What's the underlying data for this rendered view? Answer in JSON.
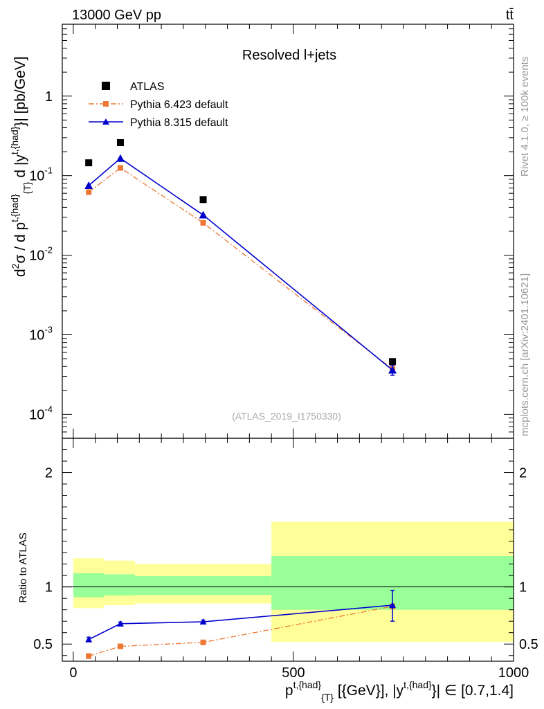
{
  "header": {
    "energy": "13000 GeV pp",
    "process": "tt̄"
  },
  "side_labels": {
    "rivet": "Rivet 4.1.0, ≥ 100k events",
    "source": "mcplots.cern.ch [arXiv:2401.10621]"
  },
  "analysis_id": "(ATLAS_2019_I1750330)",
  "colors": {
    "atlas": "#000000",
    "py6": "#ee7733",
    "py8": "#0000cc",
    "band_inner": "#99ff99",
    "band_outer": "#ffff99"
  },
  "chart_data": [
    {
      "type": "scatter",
      "title": "Resolved l+jets",
      "ylabel": "d²σ / d p^{t,{had}}_{T} d |y^{t,{had}}| [pb/GeV]",
      "yscale": "log",
      "ylim": [
        5e-05,
        8
      ],
      "xlim": [
        -25,
        1000
      ],
      "y_ticks": [
        {
          "value": 0.0001,
          "base": "10",
          "exp": "-4"
        },
        {
          "value": 0.001,
          "base": "10",
          "exp": "-3"
        },
        {
          "value": 0.01,
          "base": "10",
          "exp": "-2"
        },
        {
          "value": 0.1,
          "base": "10",
          "exp": "-1"
        },
        {
          "value": 1,
          "base": "1",
          "exp": ""
        }
      ],
      "legend": [
        {
          "label": "ATLAS",
          "key": "atlas"
        },
        {
          "label": "Pythia 6.423 default",
          "key": "py6"
        },
        {
          "label": "Pythia 8.315 default",
          "key": "py8"
        }
      ],
      "series": [
        {
          "name": "ATLAS",
          "key": "atlas",
          "marker": "square",
          "x": [
            35,
            107,
            295,
            725
          ],
          "y": [
            0.145,
            0.26,
            0.05,
            0.00046
          ]
        },
        {
          "name": "Pythia 6.423 default",
          "key": "py6",
          "marker": "square",
          "line": "dashdot",
          "x": [
            35,
            107,
            295,
            725
          ],
          "y": [
            0.062,
            0.125,
            0.0255,
            0.00037
          ]
        },
        {
          "name": "Pythia 8.315 default",
          "key": "py8",
          "marker": "triangle",
          "line": "solid",
          "x": [
            35,
            107,
            295,
            725
          ],
          "y": [
            0.075,
            0.165,
            0.032,
            0.00036
          ],
          "err_lo": [
            0,
            0,
            0,
            5e-05
          ],
          "err_hi": [
            0,
            0,
            0,
            5e-05
          ]
        }
      ]
    },
    {
      "type": "line",
      "ylabel": "Ratio to ATLAS",
      "xlabel_main": "p^{t,{had}}_{T} [{GeV}], |y^{t,{had}}| ∈ [0.7,1.4]",
      "ylim": [
        0.35,
        2.3
      ],
      "xlim": [
        -25,
        1000
      ],
      "y_ticks": [
        {
          "value": 0.5,
          "label": "0.5"
        },
        {
          "value": 1,
          "label": "1"
        },
        {
          "value": 2,
          "label": "2"
        }
      ],
      "x_ticks": [
        {
          "value": 0,
          "label": "0"
        },
        {
          "value": 500,
          "label": "500"
        },
        {
          "value": 1000,
          "label": "1000"
        }
      ],
      "bands": [
        {
          "x0": 0,
          "x1": 70,
          "inner": [
            0.91,
            1.12
          ],
          "outer": [
            0.815,
            1.25
          ]
        },
        {
          "x0": 70,
          "x1": 140,
          "inner": [
            0.925,
            1.11
          ],
          "outer": [
            0.84,
            1.23
          ]
        },
        {
          "x0": 140,
          "x1": 450,
          "inner": [
            0.93,
            1.095
          ],
          "outer": [
            0.855,
            1.2
          ]
        },
        {
          "x0": 450,
          "x1": 1000,
          "inner": [
            0.8,
            1.27
          ],
          "outer": [
            0.52,
            1.57
          ]
        }
      ],
      "series": [
        {
          "name": "Pythia 6.423 default",
          "key": "py6",
          "marker": "square",
          "line": "dashdot",
          "x": [
            35,
            107,
            295,
            725
          ],
          "y": [
            0.395,
            0.48,
            0.515,
            0.83
          ],
          "err_lo": [
            0.02,
            0.015,
            0.015,
            0.0
          ],
          "err_hi": [
            0.02,
            0.015,
            0.015,
            0.0
          ]
        },
        {
          "name": "Pythia 8.315 default",
          "key": "py8",
          "marker": "triangle",
          "line": "solid",
          "x": [
            35,
            107,
            295,
            725
          ],
          "y": [
            0.54,
            0.678,
            0.695,
            0.84
          ],
          "err_lo": [
            0.02,
            0.015,
            0.015,
            0.14
          ],
          "err_hi": [
            0.02,
            0.015,
            0.015,
            0.13
          ]
        }
      ]
    }
  ]
}
